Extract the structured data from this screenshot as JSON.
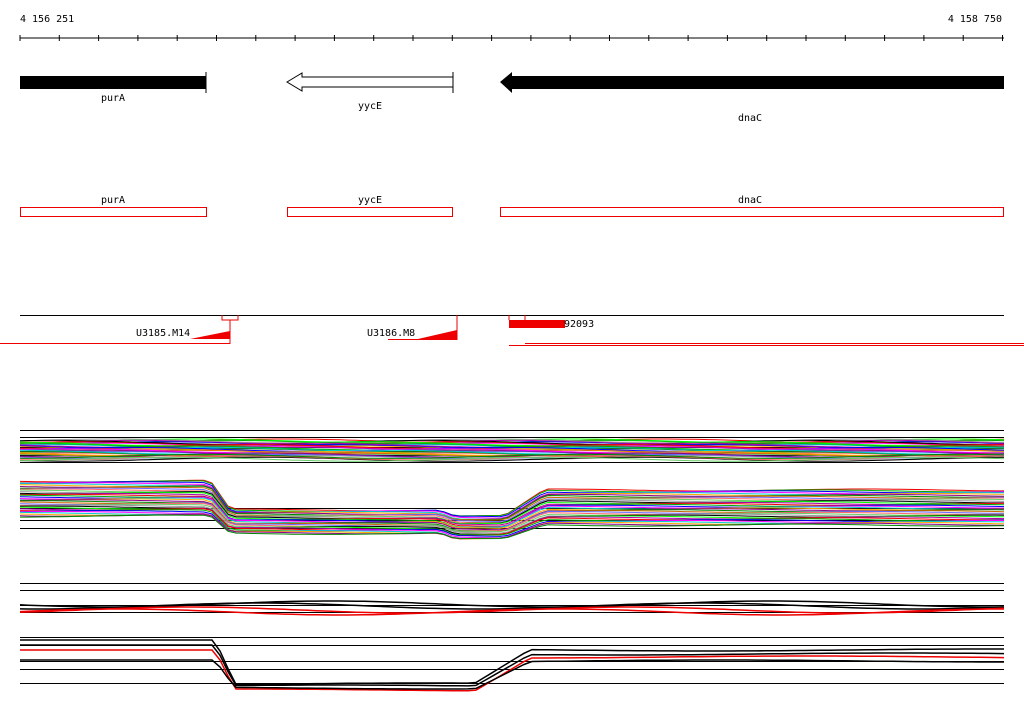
{
  "ruler": {
    "start": "4 156 251",
    "end": "4 158 750"
  },
  "genes": [
    {
      "label": "purA"
    },
    {
      "label": "yycE"
    },
    {
      "label": "dnaC"
    }
  ],
  "features": [
    {
      "label": "purA"
    },
    {
      "label": "yycE"
    },
    {
      "label": "dnaC"
    }
  ],
  "probes": [
    {
      "label": "U3185.M14"
    },
    {
      "label": "U3186.M8"
    },
    {
      "label": "92093"
    }
  ]
}
